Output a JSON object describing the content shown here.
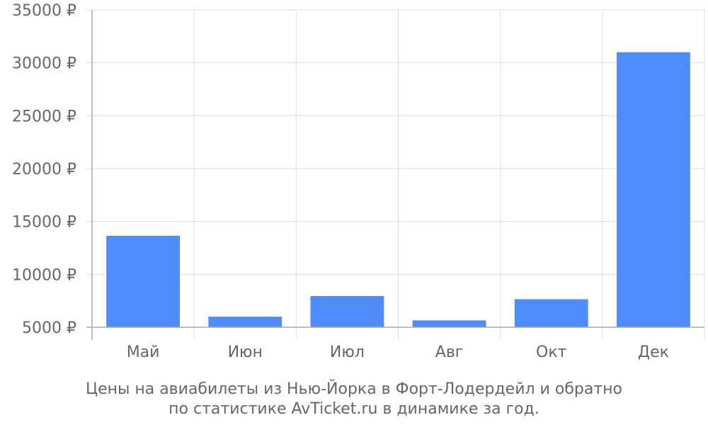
{
  "chart_data": {
    "type": "bar",
    "categories": [
      "Май",
      "Июн",
      "Июл",
      "Авг",
      "Окт",
      "Дек"
    ],
    "values": [
      13650,
      6000,
      7950,
      5650,
      7650,
      31000
    ],
    "ylim": [
      5000,
      35000
    ],
    "y_ticks": [
      5000,
      10000,
      15000,
      20000,
      25000,
      30000,
      35000
    ],
    "y_tick_suffix": " ₽",
    "caption_lines": [
      "Цены на авиабилеты из Нью-Йорка в Форт-Лодердейл и обратно",
      "по статистике AvTicket.ru в динамике за год."
    ],
    "grid": true,
    "colors": {
      "bar": "#4d8cfa",
      "grid": "#dddddd",
      "axis": "#aaaaaa",
      "text": "#666666"
    }
  }
}
